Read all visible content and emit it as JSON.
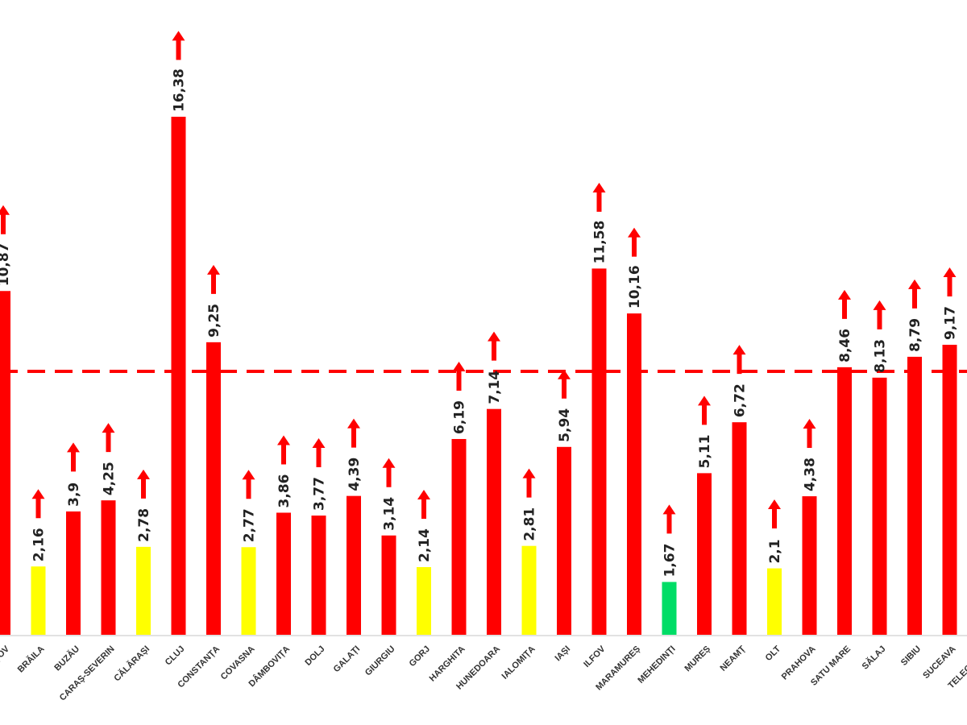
{
  "chart_data": {
    "type": "bar",
    "title": "",
    "xlabel": "",
    "ylabel": "",
    "ylim": [
      0,
      20
    ],
    "grid": false,
    "threshold": 8.33,
    "colors": {
      "high": "#ff0000",
      "mid": "#ffff00",
      "low": "#00dd66",
      "arrow": "#ff0000",
      "threshold": "#ff0000"
    },
    "categories": [
      "BRAȘOV",
      "BRĂILA",
      "BUZĂU",
      "CARAȘ-SEVERIN",
      "CĂLĂRAȘI",
      "CLUJ",
      "CONSTANȚA",
      "COVASNA",
      "DÂMBOVIȚA",
      "DOLJ",
      "GALAȚI",
      "GIURGIU",
      "GORJ",
      "HARGHITA",
      "HUNEDOARA",
      "IALOMIȚA",
      "IAȘI",
      "ILFOV",
      "MARAMUREȘ",
      "MEHEDINȚI",
      "MUREȘ",
      "NEAMȚ",
      "OLT",
      "PRAHOVA",
      "SATU MARE",
      "SĂLAJ",
      "SIBIU",
      "SUCEAVA",
      "TELEORMAN"
    ],
    "values": [
      10.87,
      2.16,
      3.9,
      4.25,
      2.78,
      16.38,
      9.25,
      2.77,
      3.86,
      3.77,
      4.39,
      3.14,
      2.14,
      6.19,
      7.14,
      2.81,
      5.94,
      11.58,
      10.16,
      1.67,
      5.11,
      6.72,
      2.1,
      4.38,
      8.46,
      8.13,
      8.79,
      9.17,
      null
    ],
    "labels": [
      "10,87",
      "2,16",
      "3,9",
      "4,25",
      "2,78",
      "16,38",
      "9,25",
      "2,77",
      "3,86",
      "3,77",
      "4,39",
      "3,14",
      "2,14",
      "6,19",
      "7,14",
      "2,81",
      "5,94",
      "11,58",
      "10,16",
      "1,67",
      "5,11",
      "6,72",
      "2,1",
      "4,38",
      "8,46",
      "8,13",
      "8,79",
      "9,17",
      null
    ],
    "trend": "up"
  }
}
